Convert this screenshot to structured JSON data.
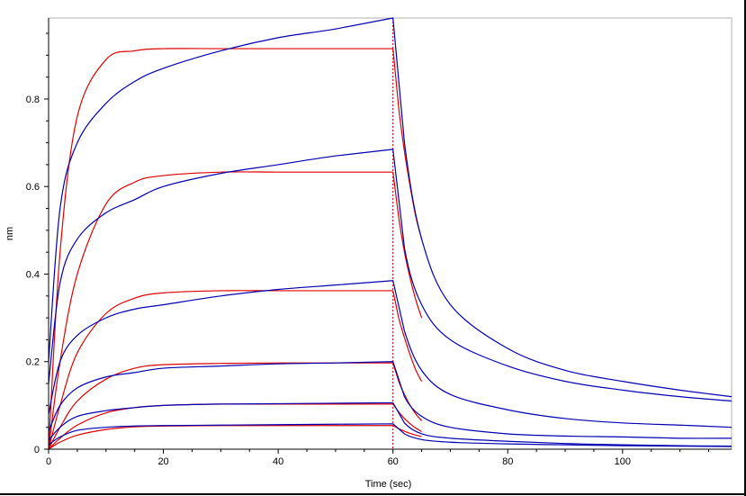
{
  "chart_data": {
    "type": "line",
    "title": "",
    "xlabel": "Time (sec)",
    "ylabel": "nm",
    "xlim": [
      0,
      119
    ],
    "ylim": [
      0,
      0.985
    ],
    "x_ticks": [
      0,
      20,
      40,
      60,
      80,
      100
    ],
    "y_ticks": [
      0,
      0.2,
      0.4,
      0.6,
      0.8
    ],
    "x_tick_labels": [
      "0",
      "20",
      "40",
      "60",
      "80",
      "100"
    ],
    "y_tick_labels": [
      "0",
      "0.2",
      "0.4",
      "0.6",
      "0.8"
    ],
    "grid": false,
    "legend": "none",
    "vline_x": 60,
    "colors": {
      "measured": "#0000b4",
      "fit": "#e00000",
      "vline": "#c00000"
    },
    "series": [
      {
        "kind": "measured",
        "x": [
          0,
          2,
          5,
          10,
          15,
          20,
          30,
          40,
          50,
          60,
          62,
          65,
          70,
          80,
          90,
          100,
          110,
          119
        ],
        "y": [
          0.2,
          0.55,
          0.7,
          0.79,
          0.84,
          0.87,
          0.91,
          0.94,
          0.96,
          0.985,
          0.7,
          0.48,
          0.33,
          0.23,
          0.18,
          0.155,
          0.135,
          0.12
        ]
      },
      {
        "kind": "fit",
        "x": [
          0,
          2,
          5,
          10,
          15,
          20,
          30,
          40,
          50,
          60
        ],
        "y": [
          0.0,
          0.45,
          0.76,
          0.89,
          0.91,
          0.915,
          0.915,
          0.915,
          0.915,
          0.915
        ]
      },
      {
        "kind": "fit",
        "x": [
          60,
          61,
          62,
          63,
          64,
          65
        ],
        "y": [
          0.915,
          0.78,
          0.68,
          0.6,
          0.53,
          0.48
        ]
      },
      {
        "kind": "measured",
        "x": [
          0,
          2,
          5,
          10,
          15,
          20,
          30,
          40,
          50,
          60,
          62,
          65,
          70,
          80,
          90,
          100,
          110,
          119
        ],
        "y": [
          0.15,
          0.38,
          0.48,
          0.54,
          0.57,
          0.6,
          0.63,
          0.65,
          0.67,
          0.685,
          0.46,
          0.33,
          0.25,
          0.19,
          0.155,
          0.135,
          0.12,
          0.11
        ]
      },
      {
        "kind": "fit",
        "x": [
          0,
          2,
          5,
          10,
          15,
          20,
          30,
          40,
          50,
          60
        ],
        "y": [
          0.0,
          0.2,
          0.4,
          0.56,
          0.61,
          0.625,
          0.633,
          0.633,
          0.633,
          0.633
        ]
      },
      {
        "kind": "fit",
        "x": [
          60,
          61,
          62,
          63,
          64,
          65
        ],
        "y": [
          0.633,
          0.53,
          0.45,
          0.39,
          0.34,
          0.3
        ]
      },
      {
        "kind": "measured",
        "x": [
          0,
          2,
          5,
          10,
          15,
          20,
          30,
          40,
          50,
          60,
          62,
          65,
          70,
          80,
          90,
          100,
          110,
          119
        ],
        "y": [
          0.08,
          0.2,
          0.26,
          0.3,
          0.32,
          0.33,
          0.35,
          0.365,
          0.375,
          0.385,
          0.27,
          0.18,
          0.125,
          0.09,
          0.07,
          0.06,
          0.055,
          0.05
        ]
      },
      {
        "kind": "fit",
        "x": [
          0,
          2,
          5,
          10,
          15,
          20,
          30,
          40,
          50,
          60
        ],
        "y": [
          0.0,
          0.1,
          0.22,
          0.31,
          0.345,
          0.357,
          0.362,
          0.362,
          0.362,
          0.362
        ]
      },
      {
        "kind": "fit",
        "x": [
          60,
          61,
          62,
          63,
          64,
          65
        ],
        "y": [
          0.362,
          0.3,
          0.255,
          0.215,
          0.18,
          0.155
        ]
      },
      {
        "kind": "measured",
        "x": [
          0,
          2,
          5,
          10,
          15,
          20,
          30,
          40,
          50,
          60,
          62,
          65,
          70,
          80,
          90,
          100,
          110,
          119
        ],
        "y": [
          0.04,
          0.1,
          0.14,
          0.165,
          0.175,
          0.185,
          0.19,
          0.195,
          0.197,
          0.2,
          0.12,
          0.075,
          0.05,
          0.035,
          0.03,
          0.028,
          0.025,
          0.025
        ]
      },
      {
        "kind": "fit",
        "x": [
          0,
          2,
          5,
          10,
          15,
          20,
          30,
          40,
          50,
          60
        ],
        "y": [
          0.0,
          0.05,
          0.11,
          0.16,
          0.185,
          0.193,
          0.196,
          0.197,
          0.197,
          0.197
        ]
      },
      {
        "kind": "fit",
        "x": [
          60,
          61,
          62,
          63,
          64,
          65
        ],
        "y": [
          0.197,
          0.155,
          0.125,
          0.1,
          0.08,
          0.065
        ]
      },
      {
        "kind": "measured",
        "x": [
          0,
          2,
          5,
          10,
          15,
          20,
          30,
          40,
          50,
          60,
          62,
          65,
          70,
          80,
          90,
          100,
          110,
          119
        ],
        "y": [
          0.02,
          0.05,
          0.075,
          0.088,
          0.095,
          0.1,
          0.103,
          0.104,
          0.105,
          0.106,
          0.06,
          0.035,
          0.025,
          0.018,
          0.013,
          0.01,
          0.008,
          0.007
        ]
      },
      {
        "kind": "fit",
        "x": [
          0,
          2,
          5,
          10,
          15,
          20,
          30,
          40,
          50,
          60
        ],
        "y": [
          0.0,
          0.025,
          0.055,
          0.083,
          0.095,
          0.1,
          0.103,
          0.103,
          0.103,
          0.103
        ]
      },
      {
        "kind": "fit",
        "x": [
          60,
          61,
          62,
          63,
          64,
          65
        ],
        "y": [
          0.103,
          0.085,
          0.07,
          0.058,
          0.048,
          0.04
        ]
      },
      {
        "kind": "measured",
        "x": [
          0,
          2,
          5,
          10,
          15,
          20,
          30,
          40,
          50,
          60,
          62,
          65,
          70,
          80,
          90,
          100,
          110,
          119
        ],
        "y": [
          0.01,
          0.028,
          0.043,
          0.05,
          0.053,
          0.054,
          0.055,
          0.056,
          0.057,
          0.058,
          0.035,
          0.022,
          0.016,
          0.012,
          0.01,
          0.008,
          0.007,
          0.006
        ]
      },
      {
        "kind": "fit",
        "x": [
          0,
          2,
          5,
          10,
          15,
          20,
          30,
          40,
          50,
          60
        ],
        "y": [
          0.0,
          0.016,
          0.032,
          0.045,
          0.051,
          0.053,
          0.054,
          0.054,
          0.054,
          0.054
        ]
      },
      {
        "kind": "fit",
        "x": [
          60,
          61,
          62,
          63,
          64,
          65
        ],
        "y": [
          0.054,
          0.047,
          0.041,
          0.036,
          0.032,
          0.029
        ]
      }
    ]
  }
}
